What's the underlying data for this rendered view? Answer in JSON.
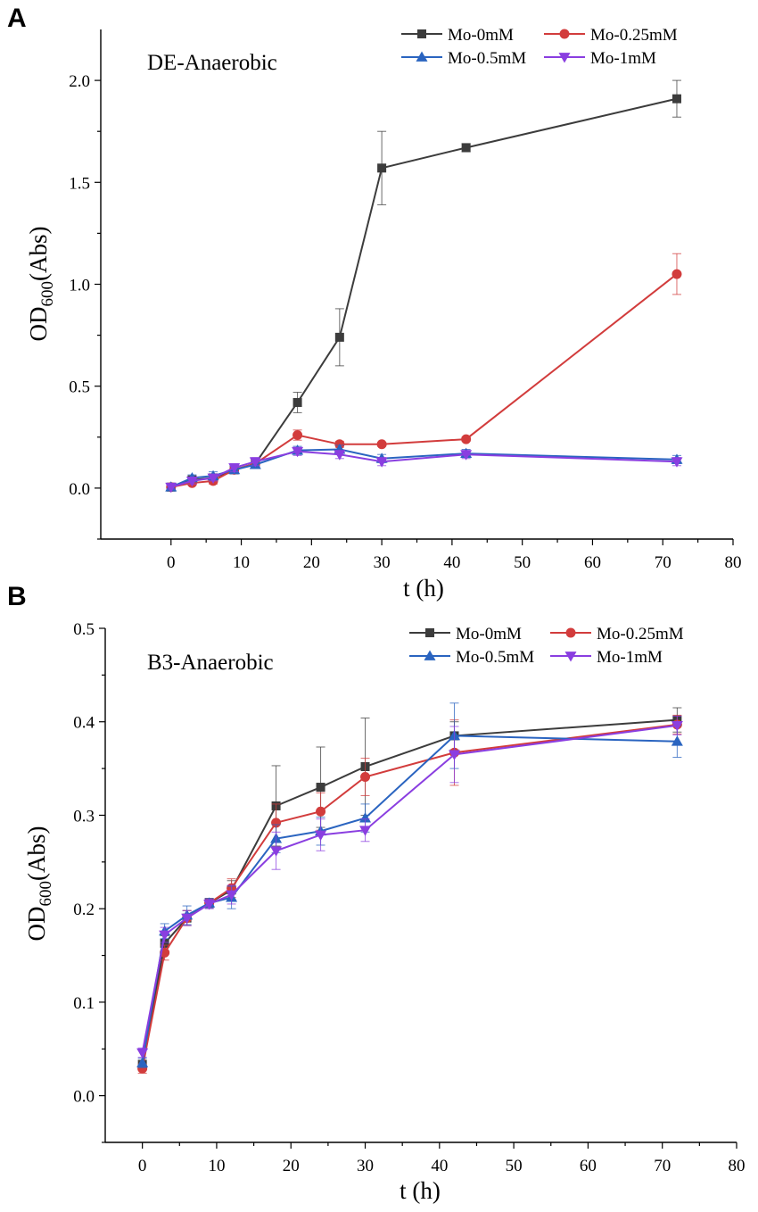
{
  "chart_data": [
    {
      "panel_label": "A",
      "type": "line",
      "title": "DE-Anaerobic",
      "xlabel": "t (h)",
      "ylabel_main": "OD",
      "ylabel_sub": "600",
      "ylabel_tail": "(Abs)",
      "xlim": [
        -10,
        80
      ],
      "ylim": [
        -0.25,
        2.25
      ],
      "xticks": [
        0,
        10,
        20,
        30,
        40,
        50,
        60,
        70,
        80
      ],
      "yticks": [
        0.0,
        0.5,
        1.0,
        1.5,
        2.0
      ],
      "ytick_labels": [
        "0.0",
        "0.5",
        "1.0",
        "1.5",
        "2.0"
      ],
      "legend_position": "top-right",
      "x": [
        0,
        3,
        6,
        9,
        12,
        18,
        24,
        30,
        42,
        72
      ],
      "series": [
        {
          "name": "Mo-0mM",
          "color": "#3c3c3c",
          "marker": "square",
          "values": [
            0.005,
            0.04,
            0.05,
            0.09,
            0.12,
            0.42,
            0.74,
            1.57,
            1.67,
            1.91
          ],
          "errors": [
            0.01,
            0.02,
            0.02,
            0.02,
            0.02,
            0.05,
            0.14,
            0.18,
            0.02,
            0.09
          ]
        },
        {
          "name": "Mo-0.25mM",
          "color": "#d23c3c",
          "marker": "circle",
          "values": [
            0.005,
            0.025,
            0.035,
            0.09,
            0.12,
            0.26,
            0.215,
            0.215,
            0.24,
            1.05
          ],
          "errors": [
            0.01,
            0.01,
            0.015,
            0.015,
            0.02,
            0.025,
            0.015,
            0.01,
            0.01,
            0.1
          ]
        },
        {
          "name": "Mo-0.5mM",
          "color": "#2a64c0",
          "marker": "triangle-up",
          "values": [
            0.005,
            0.05,
            0.06,
            0.09,
            0.115,
            0.185,
            0.19,
            0.145,
            0.17,
            0.14
          ],
          "errors": [
            0.01,
            0.015,
            0.02,
            0.015,
            0.015,
            0.02,
            0.02,
            0.02,
            0.02,
            0.02
          ]
        },
        {
          "name": "Mo-1mM",
          "color": "#8a3ee0",
          "marker": "triangle-down",
          "values": [
            0.005,
            0.035,
            0.05,
            0.1,
            0.13,
            0.18,
            0.165,
            0.13,
            0.165,
            0.13
          ],
          "errors": [
            0.01,
            0.015,
            0.015,
            0.02,
            0.02,
            0.02,
            0.02,
            0.02,
            0.02,
            0.02
          ]
        }
      ]
    },
    {
      "panel_label": "B",
      "type": "line",
      "title": "B3-Anaerobic",
      "xlabel": "t (h)",
      "ylabel_main": "OD",
      "ylabel_sub": "600",
      "ylabel_tail": "(Abs)",
      "xlim": [
        -5,
        80
      ],
      "ylim": [
        -0.05,
        0.5
      ],
      "xticks": [
        0,
        10,
        20,
        30,
        40,
        50,
        60,
        70,
        80
      ],
      "yticks": [
        0.0,
        0.1,
        0.2,
        0.3,
        0.4,
        0.5
      ],
      "ytick_labels": [
        "0.0",
        "0.1",
        "0.2",
        "0.3",
        "0.4",
        "0.5"
      ],
      "legend_position": "top-right",
      "x": [
        0,
        3,
        6,
        9,
        12,
        18,
        24,
        30,
        42,
        72
      ],
      "series": [
        {
          "name": "Mo-0mM",
          "color": "#3c3c3c",
          "marker": "square",
          "values": [
            0.033,
            0.163,
            0.19,
            0.206,
            0.22,
            0.31,
            0.33,
            0.352,
            0.385,
            0.402
          ],
          "errors": [
            0.005,
            0.008,
            0.008,
            0.005,
            0.01,
            0.043,
            0.043,
            0.052,
            0.015,
            0.013
          ]
        },
        {
          "name": "Mo-0.25mM",
          "color": "#d23c3c",
          "marker": "circle",
          "values": [
            0.029,
            0.153,
            0.19,
            0.206,
            0.222,
            0.292,
            0.304,
            0.341,
            0.367,
            0.397
          ],
          "errors": [
            0.005,
            0.008,
            0.008,
            0.005,
            0.01,
            0.02,
            0.02,
            0.02,
            0.035,
            0.01
          ]
        },
        {
          "name": "Mo-0.5mM",
          "color": "#2a64c0",
          "marker": "triangle-up",
          "values": [
            0.035,
            0.176,
            0.193,
            0.206,
            0.212,
            0.275,
            0.283,
            0.297,
            0.385,
            0.379
          ],
          "errors": [
            0.005,
            0.008,
            0.01,
            0.005,
            0.012,
            0.015,
            0.015,
            0.015,
            0.035,
            0.017
          ]
        },
        {
          "name": "Mo-1mM",
          "color": "#8a3ee0",
          "marker": "triangle-down",
          "values": [
            0.046,
            0.172,
            0.19,
            0.205,
            0.215,
            0.262,
            0.279,
            0.284,
            0.365,
            0.396
          ],
          "errors": [
            0.005,
            0.008,
            0.008,
            0.005,
            0.01,
            0.02,
            0.017,
            0.012,
            0.03,
            0.01
          ]
        }
      ]
    }
  ]
}
